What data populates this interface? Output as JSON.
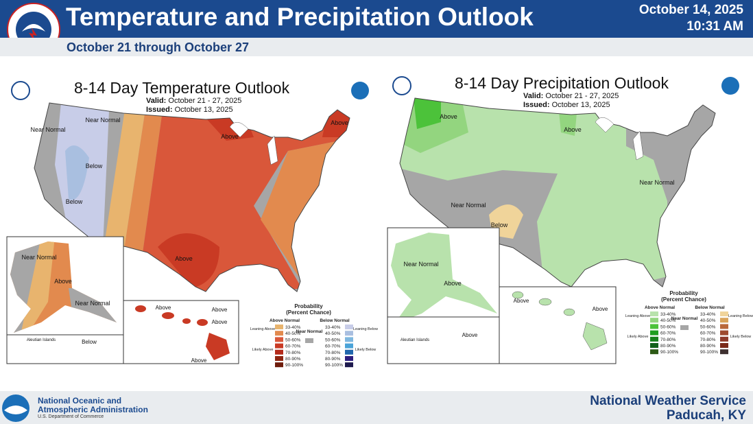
{
  "header": {
    "title": "Temperature and Precipitation Outlook",
    "date": "October 14, 2025",
    "time": "10:31 AM",
    "subtitle": "October 21 through October 27",
    "logo_text": "NATIONAL WEATHER SERVICE"
  },
  "temp_map": {
    "title": "8-14 Day Temperature Outlook",
    "valid_label": "Valid:",
    "valid": "October 21 - 27, 2025",
    "issued_label": "Issued:",
    "issued": "October 13, 2025",
    "labels": [
      "Near Normal",
      "Near Normal",
      "Below",
      "Below",
      "Above",
      "Above",
      "Above",
      "Near Normal",
      "Above",
      "Near Normal",
      "Above",
      "Above",
      "Above",
      "Above",
      "Below",
      "Aleutian Islands"
    ]
  },
  "precip_map": {
    "title": "8-14 Day Precipitation Outlook",
    "valid_label": "Valid:",
    "valid": "October 21 - 27, 2025",
    "issued_label": "Issued:",
    "issued": "October 13, 2025",
    "labels": [
      "Above",
      "Above",
      "Near Normal",
      "Near Normal",
      "Below",
      "Near Normal",
      "Above",
      "Above",
      "Above",
      "Above",
      "Aleutian Islands"
    ]
  },
  "legend": {
    "title1": "Probability",
    "title2": "(Percent Chance)",
    "above": "Above Normal",
    "below": "Below Normal",
    "near": "Near Normal",
    "leaning_above": "Leaning Above",
    "likely_above": "Likely Above",
    "leaning_below": "Leaning Below",
    "likely_below": "Likely Below",
    "ranges": [
      "33-40%",
      "40-50%",
      "50-60%",
      "60-70%",
      "70-80%",
      "80-90%",
      "90-100%"
    ],
    "temp_above_colors": [
      "#e8b46e",
      "#e28a4e",
      "#d9573a",
      "#c93a24",
      "#b42a1a",
      "#8e2410",
      "#6e1d0c"
    ],
    "temp_below_colors": [
      "#c8cde8",
      "#a9bfe0",
      "#7fb7df",
      "#4aa3d8",
      "#2167ad",
      "#2d1e7e",
      "#1e1a4e"
    ],
    "precip_above_colors": [
      "#b8e2ac",
      "#93d57f",
      "#4cc23a",
      "#1f9e1f",
      "#17801a",
      "#13621a",
      "#2d5a16"
    ],
    "precip_below_colors": [
      "#f0d49a",
      "#d9a45a",
      "#b9683a",
      "#9e4a2e",
      "#8e3a2a",
      "#7a2a1a",
      "#3e3030"
    ],
    "near_color": "#a6a6a6"
  },
  "footer": {
    "noaa_line1": "National Oceanic and",
    "noaa_line2": "Atmospheric Administration",
    "noaa_line3": "U.S. Department of Commerce",
    "office_line1": "National Weather Service",
    "office_line2": "Paducah, KY"
  }
}
